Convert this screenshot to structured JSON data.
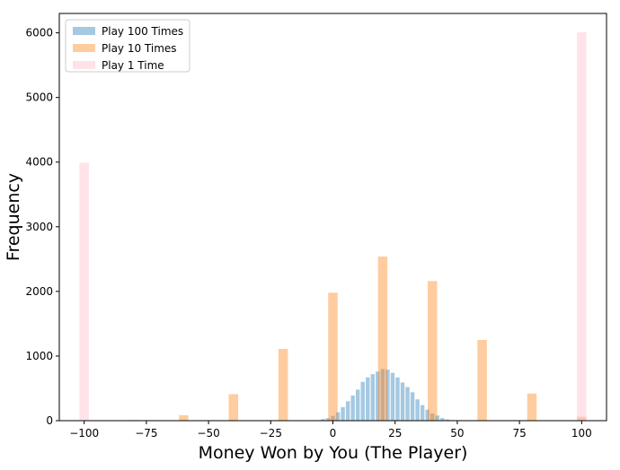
{
  "chart_data": {
    "type": "bar",
    "xlabel": "Money Won by You (The Player)",
    "ylabel": "Frequency",
    "xlim": [
      -110,
      110
    ],
    "ylim": [
      0,
      6300
    ],
    "xticks": [
      -100,
      -75,
      -50,
      -25,
      0,
      25,
      50,
      75,
      100
    ],
    "yticks": [
      0,
      1000,
      2000,
      3000,
      4000,
      5000,
      6000
    ],
    "legend_position": "top-left",
    "grid": false,
    "series": [
      {
        "name": "Play 100 Times",
        "color": "#1f77b4",
        "opacity": 0.4,
        "bar_width": 1.6,
        "x": [
          -8,
          -6,
          -4,
          -2,
          0,
          2,
          4,
          6,
          8,
          10,
          12,
          14,
          16,
          18,
          20,
          22,
          24,
          26,
          28,
          30,
          32,
          34,
          36,
          38,
          40,
          42,
          44,
          46,
          48
        ],
        "values": [
          5,
          8,
          25,
          40,
          75,
          130,
          210,
          300,
          390,
          480,
          600,
          670,
          720,
          760,
          800,
          790,
          740,
          670,
          590,
          520,
          440,
          330,
          240,
          170,
          110,
          80,
          40,
          20,
          8
        ]
      },
      {
        "name": "Play 10 Times",
        "color": "#ff7f0e",
        "opacity": 0.4,
        "bar_width": 3.8,
        "x": [
          -80,
          -60,
          -40,
          -20,
          0,
          20,
          40,
          60,
          80,
          100
        ],
        "values": [
          10,
          85,
          410,
          1110,
          1980,
          2540,
          2160,
          1250,
          420,
          60
        ]
      },
      {
        "name": "Play 1 Time",
        "color": "#ffc0cb",
        "opacity": 0.45,
        "bar_width": 3.8,
        "x": [
          -100,
          100
        ],
        "values": [
          3990,
          6010
        ]
      }
    ]
  }
}
